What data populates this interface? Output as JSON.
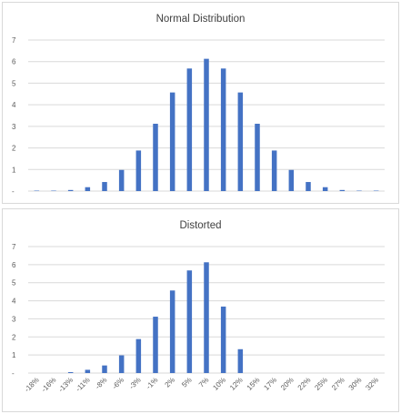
{
  "chart_data": [
    {
      "type": "bar",
      "title": "Normal Distribution",
      "categories": [
        "-18%",
        "-16%",
        "-13%",
        "-11%",
        "-8%",
        "-6%",
        "-3%",
        "-1%",
        "2%",
        "5%",
        "7%",
        "10%",
        "12%",
        "15%",
        "17%",
        "20%",
        "22%",
        "25%",
        "27%",
        "30%",
        "32%"
      ],
      "values": [
        0.02,
        0.02,
        0.05,
        0.18,
        0.42,
        0.98,
        1.88,
        3.12,
        4.57,
        5.68,
        6.13,
        5.68,
        4.57,
        3.12,
        1.88,
        0.98,
        0.42,
        0.18,
        0.05,
        0.02,
        0.02
      ],
      "yticks": [
        "-",
        "1",
        "2",
        "3",
        "4",
        "5",
        "6",
        "7"
      ],
      "ylim": [
        0,
        7
      ],
      "grid": true,
      "color": "#4472c4",
      "show_x_labels": false
    },
    {
      "type": "bar",
      "title": "Distorted",
      "categories": [
        "-18%",
        "-16%",
        "-13%",
        "-11%",
        "-8%",
        "-6%",
        "-3%",
        "-1%",
        "2%",
        "5%",
        "7%",
        "10%",
        "12%",
        "15%",
        "17%",
        "20%",
        "22%",
        "25%",
        "27%",
        "30%",
        "32%"
      ],
      "values": [
        0.0,
        0.0,
        0.05,
        0.18,
        0.42,
        0.98,
        1.88,
        3.12,
        4.57,
        5.68,
        6.13,
        3.68,
        1.32,
        0,
        0,
        0,
        0,
        0,
        0,
        0,
        0
      ],
      "yticks": [
        "-",
        "1",
        "2",
        "3",
        "4",
        "5",
        "6",
        "7"
      ],
      "ylim": [
        0,
        7
      ],
      "grid": true,
      "color": "#4472c4",
      "show_x_labels": true
    }
  ]
}
